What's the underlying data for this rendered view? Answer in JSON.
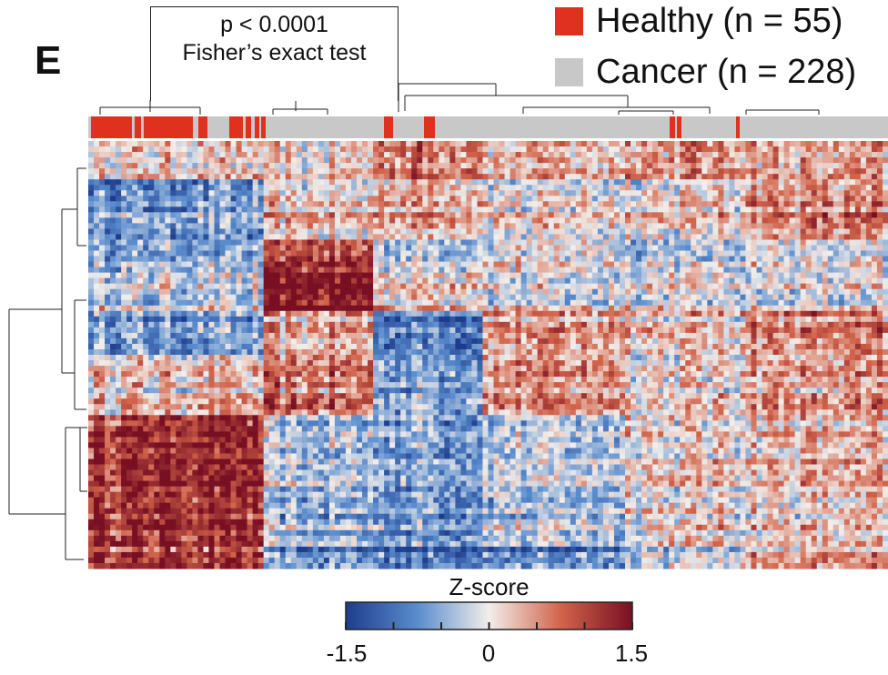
{
  "panel_label": "E",
  "annotation": {
    "line1": "p < 0.0001",
    "line2": "Fisher’s exact test"
  },
  "legend": [
    {
      "label": "Healthy (n = 55)",
      "color": "#e0301e"
    },
    {
      "label": "Cancer (n = 228)",
      "color": "#c8c8c8"
    }
  ],
  "colorbar": {
    "title": "Z-score",
    "ticks": [
      "-1.5",
      "0",
      "1.5"
    ],
    "range": [
      -1.5,
      1.5
    ],
    "colormap": [
      "#1e3c8c",
      "#5a8ccd",
      "#f2eeea",
      "#d2644b",
      "#780f23"
    ]
  },
  "chart_data": {
    "type": "heatmap",
    "title": "",
    "xlabel": "",
    "ylabel": "",
    "value_range": [
      -1.5,
      1.5
    ],
    "colorbar_title": "Z-score",
    "column_annotation": {
      "Healthy": 55,
      "Cancer": 228
    },
    "statistical_test": "Fisher’s exact test",
    "p_value": "p < 0.0001",
    "row_dendrogram": true,
    "column_dendrogram": true
  }
}
